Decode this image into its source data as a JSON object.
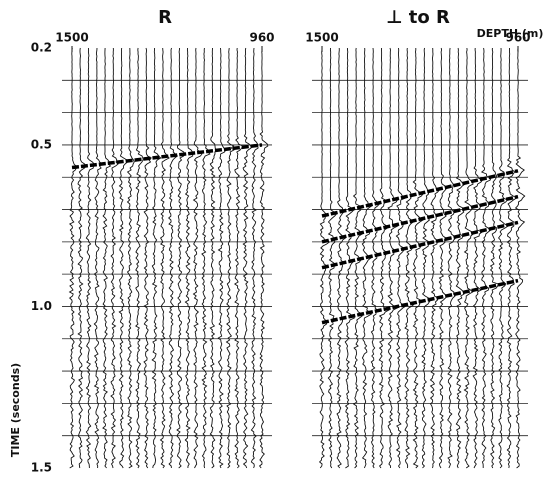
{
  "chart_data": [
    {
      "type": "seismic",
      "title": "R",
      "ylabel": "TIME (seconds)",
      "xlim": [
        1500,
        960
      ],
      "xticks": [
        1500,
        960
      ],
      "ylim": [
        0.2,
        1.5
      ],
      "yticks": [
        0.2,
        0.5,
        {
          "value": 1,
          "label": "1.0"
        },
        1.5
      ],
      "yminor": [
        0.3,
        0.4,
        0.5,
        0.6,
        0.7,
        0.8,
        0.9,
        1,
        1.1,
        1.2,
        1.3,
        1.4
      ],
      "events": [
        {
          "x": [
            1500,
            960
          ],
          "y": [
            0.57,
            0.5
          ]
        }
      ]
    },
    {
      "type": "seismic",
      "title": "⊥ to R",
      "xlabel": "DEPTH (m)",
      "xlim": [
        1500,
        960
      ],
      "xticks": [
        1500,
        960
      ],
      "ylim": [
        0.2,
        1.5
      ],
      "yminor": [
        0.3,
        0.4,
        0.5,
        0.6,
        0.7,
        0.8,
        0.9,
        1,
        1.1,
        1.2,
        1.3,
        1.4
      ],
      "events": [
        {
          "x": [
            1500,
            960
          ],
          "y": [
            0.72,
            0.58
          ]
        },
        {
          "x": [
            1500,
            960
          ],
          "y": [
            0.8,
            0.66
          ]
        },
        {
          "x": [
            1500,
            960
          ],
          "y": [
            0.88,
            0.74
          ]
        },
        {
          "x": [
            1500,
            960
          ],
          "y": [
            1.05,
            0.92
          ]
        }
      ]
    }
  ]
}
